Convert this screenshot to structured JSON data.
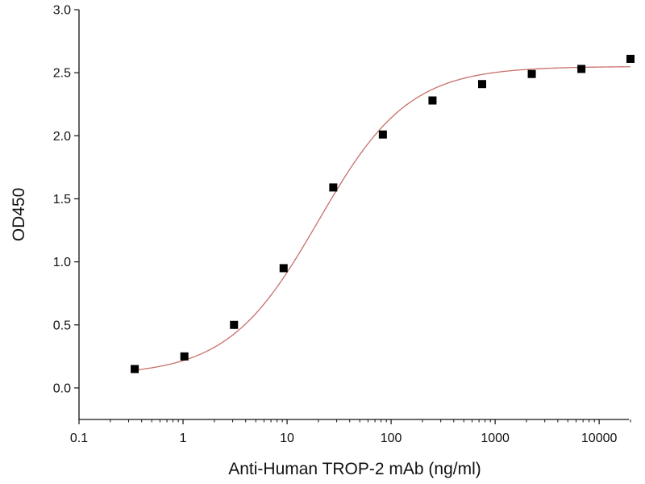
{
  "chart_data": {
    "type": "scatter",
    "title": "",
    "xlabel": "Anti-Human TROP-2 mAb (ng/ml)",
    "ylabel": "OD450",
    "xscale": "log",
    "xlim": [
      0.1,
      20000
    ],
    "ylim": [
      -0.25,
      3.0
    ],
    "grid": false,
    "legend": "none",
    "x_ticks": [
      {
        "value": 0.1,
        "label": "0.1"
      },
      {
        "value": 1,
        "label": "1"
      },
      {
        "value": 10,
        "label": "10"
      },
      {
        "value": 100,
        "label": "100"
      },
      {
        "value": 1000,
        "label": "1000"
      },
      {
        "value": 10000,
        "label": "10000"
      }
    ],
    "y_ticks": [
      {
        "value": 0.0,
        "label": "0.0"
      },
      {
        "value": 0.5,
        "label": "0.5"
      },
      {
        "value": 1.0,
        "label": "1.0"
      },
      {
        "value": 1.5,
        "label": "1.5"
      },
      {
        "value": 2.0,
        "label": "2.0"
      },
      {
        "value": 2.5,
        "label": "2.5"
      },
      {
        "value": 3.0,
        "label": "3.0"
      }
    ],
    "series": [
      {
        "marker": "square",
        "color": "#000000",
        "points": [
          {
            "x": 0.343,
            "y": 0.15
          },
          {
            "x": 1.03,
            "y": 0.25
          },
          {
            "x": 3.09,
            "y": 0.5
          },
          {
            "x": 9.26,
            "y": 0.95
          },
          {
            "x": 27.8,
            "y": 1.59
          },
          {
            "x": 83.3,
            "y": 2.01
          },
          {
            "x": 250,
            "y": 2.28
          },
          {
            "x": 750,
            "y": 2.41
          },
          {
            "x": 2250,
            "y": 2.49
          },
          {
            "x": 6750,
            "y": 2.53
          },
          {
            "x": 20000,
            "y": 2.61
          }
        ]
      }
    ],
    "fit_curve": {
      "model": "4PL",
      "color": "#c8706a",
      "bottom": 0.1,
      "top": 2.55,
      "ec50": 20,
      "hill": 1.0,
      "x_range": [
        0.33,
        20000
      ]
    }
  }
}
